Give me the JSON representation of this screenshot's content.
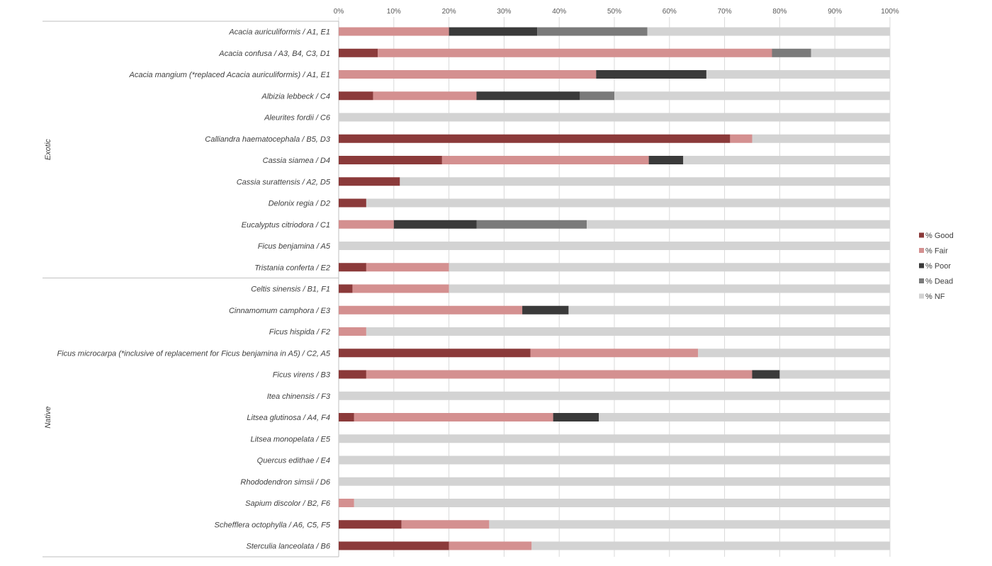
{
  "chart_data": {
    "type": "bar",
    "orientation": "horizontal",
    "stacked": true,
    "percent_stacked": true,
    "x_ticks": [
      "0%",
      "10%",
      "20%",
      "30%",
      "40%",
      "50%",
      "60%",
      "70%",
      "80%",
      "90%",
      "100%"
    ],
    "xlim": [
      0,
      100
    ],
    "grid": true,
    "legend_position": "right",
    "groups": [
      {
        "name": "Exotic",
        "categories": [
          0,
          11
        ]
      },
      {
        "name": "Native",
        "categories": [
          12,
          24
        ]
      }
    ],
    "categories": [
      "Acacia auriculiformis / A1, E1",
      "Acacia confusa / A3, B4, C3, D1",
      "Acacia mangium (*replaced Acacia auriculiformis) / A1, E1",
      "Albizia lebbeck / C4",
      "Aleurites fordii / C6",
      "Calliandra haematocephala / B5, D3",
      "Cassia siamea / D4",
      "Cassia surattensis / A2, D5",
      "Delonix regia / D2",
      "Eucalyptus citriodora / C1",
      "Ficus benjamina / A5",
      "Tristania conferta / E2",
      "Celtis sinensis / B1, F1",
      "Cinnamomum camphora / E3",
      "Ficus hispida / F2",
      "Ficus microcarpa (*inclusive of replacement for Ficus benjamina in A5) / C2, A5",
      "Ficus virens / B3",
      "Itea chinensis / F3",
      "Litsea glutinosa / A4, F4",
      "Litsea monopelata / E5",
      "Quercus edithae / E4",
      "Rhododendron simsii / D6",
      "Sapium discolor / B2, F6",
      "Schefflera octophylla / A6, C5, F5",
      "Sterculia lanceolata / B6"
    ],
    "series": [
      {
        "name": "% Good",
        "color": "#8B3A3A",
        "values": [
          0,
          7.1,
          0,
          6.25,
          0,
          71,
          18.75,
          11.1,
          5,
          0,
          0,
          5,
          2.5,
          0,
          0,
          34.8,
          5,
          0,
          2.8,
          0,
          0,
          0,
          0,
          11.4,
          20
        ]
      },
      {
        "name": "% Fair",
        "color": "#D49090",
        "values": [
          20,
          71.5,
          46.7,
          18.75,
          0,
          4,
          37.5,
          0,
          0,
          10,
          0,
          15,
          17.5,
          33.3,
          5,
          30.4,
          70,
          0,
          36.1,
          0,
          0,
          0,
          2.8,
          15.9,
          15
        ]
      },
      {
        "name": "% Poor",
        "color": "#3A3A3A",
        "values": [
          16,
          0,
          20,
          18.75,
          0,
          0,
          6.25,
          0,
          0,
          15,
          0,
          0,
          0,
          8.4,
          0,
          0,
          5,
          0,
          8.3,
          0,
          0,
          0,
          0,
          0,
          0
        ]
      },
      {
        "name": "% Dead",
        "color": "#7A7A7A",
        "values": [
          20,
          7.1,
          0,
          6.25,
          0,
          0,
          0,
          0,
          0,
          20,
          0,
          0,
          0,
          0,
          0,
          0,
          0,
          0,
          0,
          0,
          0,
          0,
          0,
          0,
          0
        ]
      },
      {
        "name": "% NF",
        "color": "#D3D3D3",
        "values": [
          44,
          14.3,
          33.3,
          50,
          100,
          25,
          37.5,
          88.9,
          95,
          55,
          100,
          80,
          80,
          58.3,
          95,
          34.8,
          20,
          100,
          52.8,
          100,
          100,
          100,
          97.2,
          72.7,
          65
        ]
      }
    ]
  }
}
